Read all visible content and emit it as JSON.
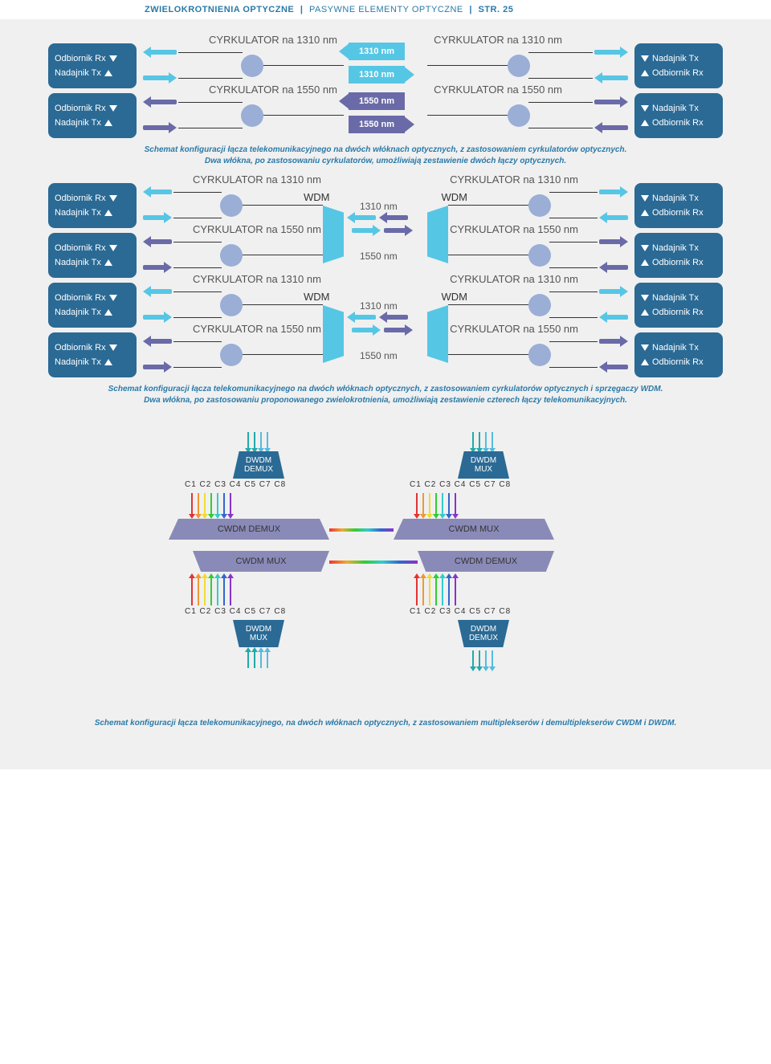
{
  "header": {
    "t1": "ZWIELOKROTNIENIA OPTYCZNE",
    "t2": "PASYWNE ELEMENTY OPTYCZNE",
    "page": "STR. 25",
    "sep": "|"
  },
  "labels": {
    "odbior": "Odbiornik Rx",
    "nadaj": "Nadajnik Tx",
    "circ1310": "CYRKULATOR na 1310 nm",
    "circ1550": "CYRKULATOR na 1550 nm",
    "nm1310": "1310 nm",
    "nm1550": "1550 nm",
    "wdm": "WDM"
  },
  "caption1a": "Schemat konfiguracji łącza telekomunikacyjnego na dwóch włóknach optycznych, z zastosowaniem cyrkulatorów optycznych.",
  "caption1b": "Dwa włókna, po zastosowaniu cyrkulatorów, umożliwiają zestawienie dwóch łączy optycznych.",
  "caption2a": "Schemat konfiguracji łącza telekomunikacyjnego na dwóch włóknach optycznych, z zastosowaniem cyrkulatorów optycznych i sprzęgaczy WDM.",
  "caption2b": "Dwa włókna, po zastosowaniu proponowanego zwielokrotnienia, umożliwiają zestawienie czterech łączy telekomunikacyjnych.",
  "caption3": "Schemat konfiguracji łącza telekomunikacyjnego, na dwóch włóknach optycznych, z zastosowaniem multiplekserów i demultiplekserów CWDM i DWDM.",
  "dwdm": {
    "demux": "DWDM\nDEMUX",
    "mux": "DWDM\nMUX"
  },
  "cwdm": {
    "demux": "CWDM DEMUX",
    "mux": "CWDM MUX"
  },
  "channels": "C1 C2 C3 C4 C5     C7 C8",
  "colors": {
    "box": "#2a6a95",
    "cyan": "#56c6e5",
    "purple": "#6a6aa8",
    "lilac": "#9aaed6",
    "cwdm": "#8a8ab8",
    "cap": "#2a7aa8",
    "ch": [
      "#e33333",
      "#ee9933",
      "#eedd33",
      "#33cc33",
      "#33cccc",
      "#3366cc",
      "#8833cc"
    ]
  }
}
